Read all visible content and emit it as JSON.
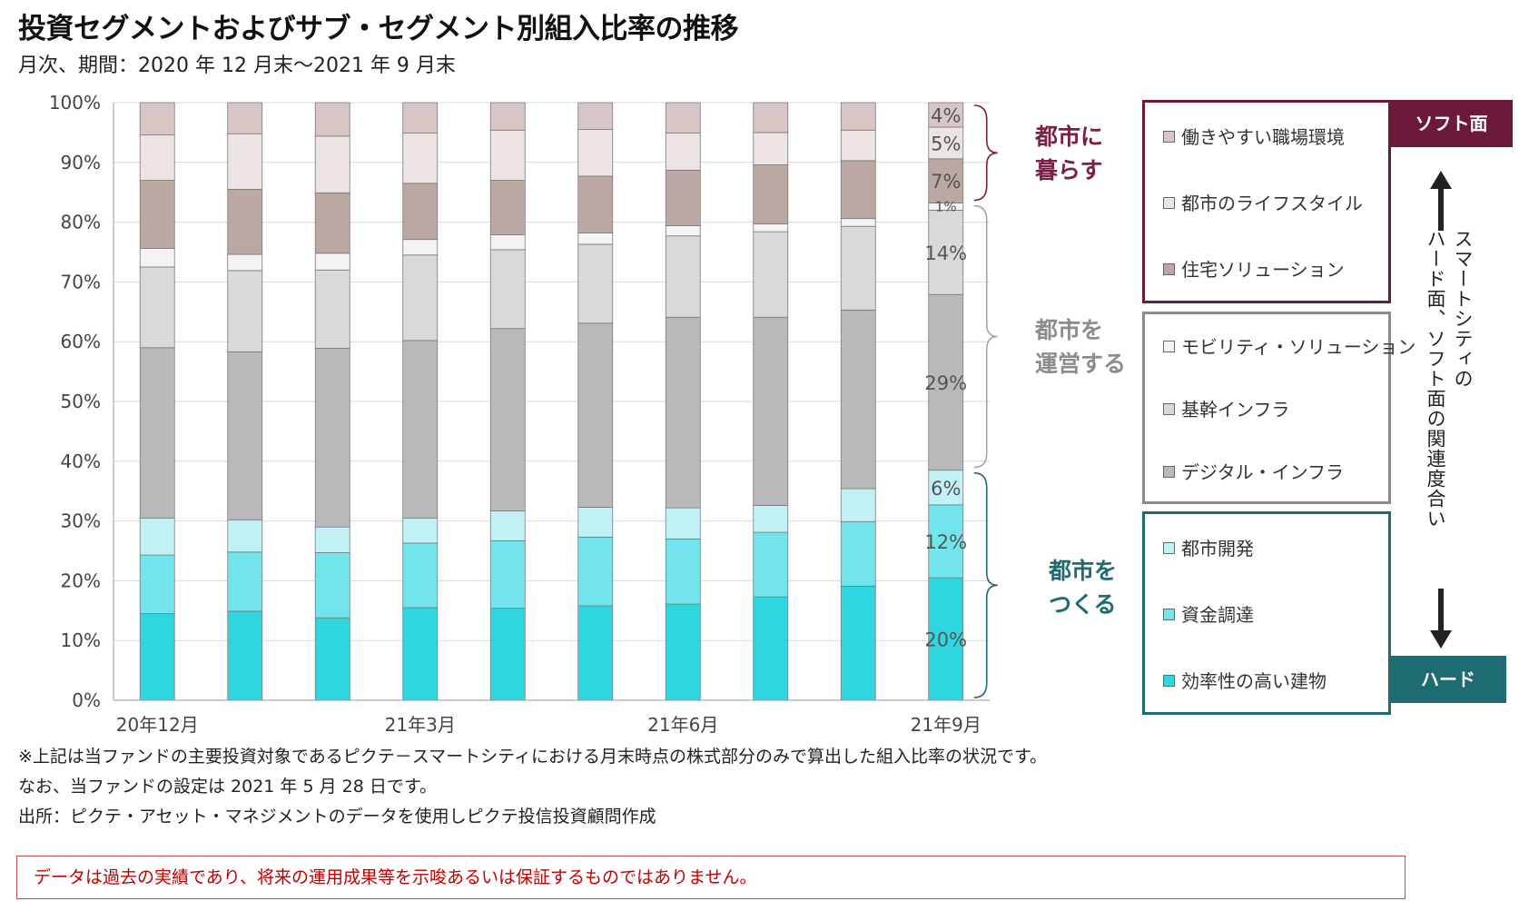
{
  "title": "投資セグメントおよびサブ・セグメント別組入比率の推移",
  "subtitle": "月次、期間：2020 年 12 月末～2021 年 9 月末",
  "chart_data": {
    "type": "bar",
    "stacked": true,
    "ylim": [
      0,
      100
    ],
    "yticks": [
      "0%",
      "10%",
      "20%",
      "30%",
      "40%",
      "50%",
      "60%",
      "70%",
      "80%",
      "90%",
      "100%"
    ],
    "x_tick_labels": [
      "20年12月",
      "",
      "",
      "21年3月",
      "",
      "",
      "21年6月",
      "",
      "",
      "21年9月"
    ],
    "grid": true,
    "series": [
      {
        "name": "効率性の高い建物",
        "color": "#2fd5df",
        "values": [
          14.5,
          14.9,
          13.8,
          15.5,
          15.4,
          15.8,
          16.1,
          17.3,
          19.1,
          20.5
        ]
      },
      {
        "name": "資金調達",
        "color": "#72e4ec",
        "values": [
          9.8,
          9.9,
          10.9,
          10.8,
          11.3,
          11.5,
          10.9,
          10.8,
          10.8,
          12.2
        ]
      },
      {
        "name": "都市開発",
        "color": "#c2f1f5",
        "values": [
          6.2,
          5.4,
          4.3,
          4.2,
          5.0,
          5.0,
          5.2,
          4.5,
          5.5,
          5.8
        ]
      },
      {
        "name": "デジタル・インフラ",
        "color": "#b9b9b9",
        "values": [
          28.5,
          28.1,
          29.9,
          29.7,
          30.5,
          30.8,
          31.9,
          31.5,
          29.9,
          29.4
        ]
      },
      {
        "name": "基幹インフラ",
        "color": "#d9d9d9",
        "values": [
          13.5,
          13.6,
          13.1,
          14.3,
          13.2,
          13.2,
          13.6,
          14.3,
          14.0,
          14.1
        ]
      },
      {
        "name": "モビリティ・ソリューション",
        "color": "#f3f3f3",
        "values": [
          3.1,
          2.7,
          2.8,
          2.6,
          2.5,
          1.9,
          1.7,
          1.3,
          1.3,
          1.2
        ]
      },
      {
        "name": "住宅ソリューション",
        "color": "#bba8a3",
        "values": [
          11.4,
          10.9,
          10.1,
          9.4,
          9.1,
          9.5,
          9.3,
          9.9,
          9.7,
          7.4
        ]
      },
      {
        "name": "都市のライフスタイル",
        "color": "#ece3e3",
        "values": [
          7.6,
          9.3,
          9.5,
          8.4,
          8.4,
          7.8,
          6.2,
          5.4,
          5.1,
          5.3
        ]
      },
      {
        "name": "働きやすい職場環境",
        "color": "#d7c6c4",
        "values": [
          5.4,
          5.2,
          5.6,
          5.1,
          4.6,
          4.5,
          5.1,
          5.0,
          4.6,
          4.1
        ]
      }
    ],
    "last_bar_labels": [
      "20%",
      "12%",
      "6%",
      "29%",
      "14%",
      "1%",
      "7%",
      "5%",
      "4%"
    ]
  },
  "groups": {
    "live": {
      "line1": "都市に",
      "line2": "暮らす",
      "color": "#7b1f47"
    },
    "operate": {
      "line1": "都市を",
      "line2": "運営する",
      "color": "#8c8c8c"
    },
    "build": {
      "line1": "都市を",
      "line2": "つくる",
      "color": "#1f6b72"
    }
  },
  "legend": {
    "soft_items": [
      {
        "label": "働きやすい職場環境",
        "color": "#d7c6c4"
      },
      {
        "label": "都市のライフスタイル",
        "color": "#ece3e3"
      },
      {
        "label": "住宅ソリューション",
        "color": "#bba8a3"
      }
    ],
    "infra_items": [
      {
        "label": "モビリティ・ソリューション",
        "color": "#f3f3f3"
      },
      {
        "label": "基幹インフラ",
        "color": "#d9d9d9"
      },
      {
        "label": "デジタル・インフラ",
        "color": "#b9b9b9"
      }
    ],
    "hard_items": [
      {
        "label": "都市開発",
        "color": "#c2f1f5"
      },
      {
        "label": "資金調達",
        "color": "#72e4ec"
      },
      {
        "label": "効率性の高い建物",
        "color": "#2fd5df"
      }
    ],
    "soft_tag": "ソフト面",
    "hard_tag": "ハード",
    "soft_color": "#6b1a3a",
    "hard_color": "#1f6b72",
    "vertical_text_1": "スマートシティの",
    "vertical_text_2": "ハード面、ソフト面の関連度合い"
  },
  "notes": {
    "line1": "※上記は当ファンドの主要投資対象であるピクテ－スマートシティにおける月末時点の株式部分のみで算出した組入比率の状況です。",
    "line2": "なお、当ファンドの設定は 2021 年 5 月 28 日です。",
    "line3": "出所：ピクテ・アセット・マネジメントのデータを使用しピクテ投信投資顧問作成"
  },
  "disclaimer": "データは過去の実績であり、将来の運用成果等を示唆あるいは保証するものではありません。"
}
